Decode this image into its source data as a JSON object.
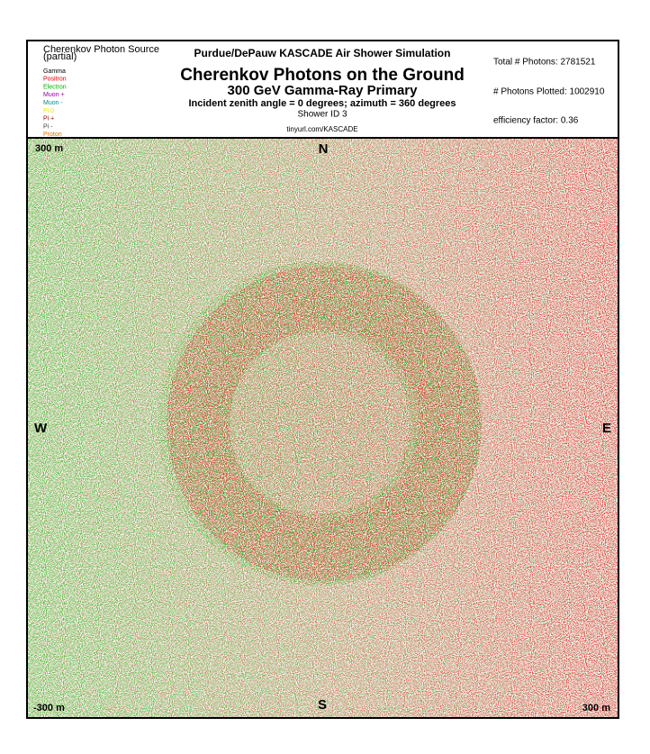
{
  "header": {
    "source_title": "Cherenkov Photon Source",
    "source_subtitle": "(partial)",
    "legend": [
      {
        "name": "Gamma",
        "color": "#000000"
      },
      {
        "name": "Positron",
        "color": "#e00000"
      },
      {
        "name": "Electron",
        "color": "#00b000"
      },
      {
        "name": "Muon +",
        "color": "#9000a0"
      },
      {
        "name": "Muon -",
        "color": "#008c8c"
      },
      {
        "name": "Pi 0",
        "color": "#e8e800"
      },
      {
        "name": "Pi +",
        "color": "#900000"
      },
      {
        "name": "Pi -",
        "color": "#404040"
      },
      {
        "name": "Proton",
        "color": "#e07000"
      }
    ],
    "org": "Purdue/DePauw KASCADE Air Shower Simulation",
    "title": "Cherenkov Photons on the Ground",
    "subtitle": "300 GeV Gamma-Ray Primary",
    "angles": "Incident zenith angle =  0 degrees;  azimuth =  360 degrees",
    "shower_id": "Shower ID 3",
    "url": "tinyurl.com/KASCADE",
    "total_photons": "Total # Photons: 2781521",
    "plotted_photons": "# Photons Plotted: 1002910",
    "efficiency": "efficiency factor: 0.36"
  },
  "plot": {
    "top_left": "300 m",
    "north": "N",
    "west": "W",
    "east": "E",
    "south": "S",
    "bottom_left": "-300 m",
    "bottom_right": "300 m"
  }
}
